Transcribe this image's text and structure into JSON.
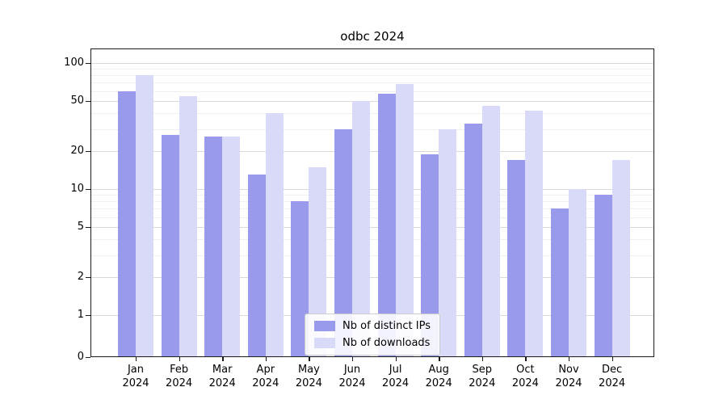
{
  "chart_data": {
    "type": "bar",
    "title": "odbc 2024",
    "yscale": "symlog",
    "ylim": [
      0,
      130
    ],
    "grid": true,
    "legend_position": "lower center",
    "yticks": [
      0,
      1,
      2,
      5,
      10,
      20,
      50,
      100
    ],
    "categories": [
      {
        "line1": "Jan",
        "line2": "2024"
      },
      {
        "line1": "Feb",
        "line2": "2024"
      },
      {
        "line1": "Mar",
        "line2": "2024"
      },
      {
        "line1": "Apr",
        "line2": "2024"
      },
      {
        "line1": "May",
        "line2": "2024"
      },
      {
        "line1": "Jun",
        "line2": "2024"
      },
      {
        "line1": "Jul",
        "line2": "2024"
      },
      {
        "line1": "Aug",
        "line2": "2024"
      },
      {
        "line1": "Sep",
        "line2": "2024"
      },
      {
        "line1": "Oct",
        "line2": "2024"
      },
      {
        "line1": "Nov",
        "line2": "2024"
      },
      {
        "line1": "Dec",
        "line2": "2024"
      }
    ],
    "series": [
      {
        "name": "Nb of distinct IPs",
        "color": "#9a9aec",
        "values": [
          60,
          27,
          26,
          13,
          8,
          30,
          57,
          19,
          33,
          17,
          7,
          9
        ]
      },
      {
        "name": "Nb of downloads",
        "color": "#d9d9f8",
        "values": [
          80,
          55,
          26,
          40,
          15,
          50,
          68,
          30,
          46,
          42,
          10,
          17
        ]
      }
    ]
  }
}
